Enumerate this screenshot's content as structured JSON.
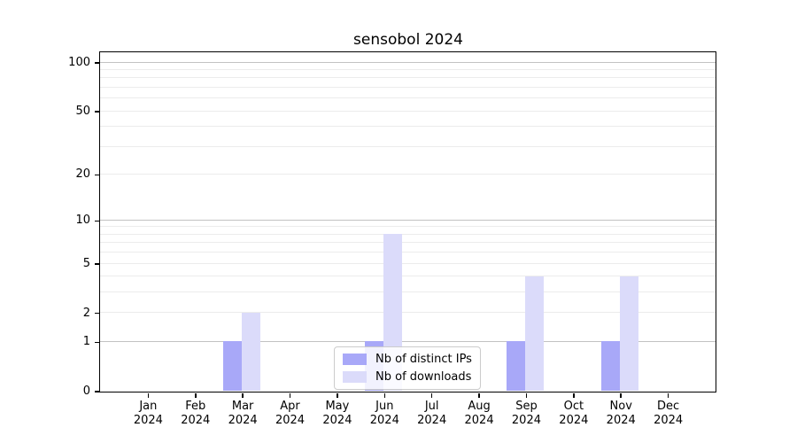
{
  "chart_data": {
    "type": "bar",
    "title": "sensobol 2024",
    "x_categories": [
      "Jan 2024",
      "Feb 2024",
      "Mar 2024",
      "Apr 2024",
      "May 2024",
      "Jun 2024",
      "Jul 2024",
      "Aug 2024",
      "Sep 2024",
      "Oct 2024",
      "Nov 2024",
      "Dec 2024"
    ],
    "series": [
      {
        "name": "Nb of distinct IPs",
        "color": "#a8a8f8",
        "values": [
          0,
          0,
          1,
          0,
          0,
          1,
          0,
          0,
          1,
          0,
          1,
          0
        ]
      },
      {
        "name": "Nb of downloads",
        "color": "#dbdbfa",
        "values": [
          0,
          0,
          2,
          0,
          0,
          8,
          0,
          0,
          4,
          0,
          4,
          0
        ]
      }
    ],
    "y_axis": {
      "scale": "log10(1+y)",
      "ylim": [
        0,
        115
      ],
      "tick_values": [
        0,
        1,
        2,
        5,
        10,
        20,
        50,
        100
      ],
      "tick_labels": [
        "0",
        "1",
        "2",
        "5",
        "10",
        "20",
        "50",
        "100"
      ],
      "major_gridlines": [
        1,
        10,
        100
      ],
      "minor_gridlines": [
        2,
        3,
        4,
        5,
        6,
        7,
        8,
        9,
        20,
        30,
        40,
        50,
        60,
        70,
        80,
        90
      ]
    },
    "legend": {
      "position": "lower center"
    },
    "grid": true,
    "colors": {
      "major_grid": "#c2c2c2",
      "minor_grid": "#ececec",
      "axis": "#000000",
      "background": "#ffffff"
    }
  }
}
